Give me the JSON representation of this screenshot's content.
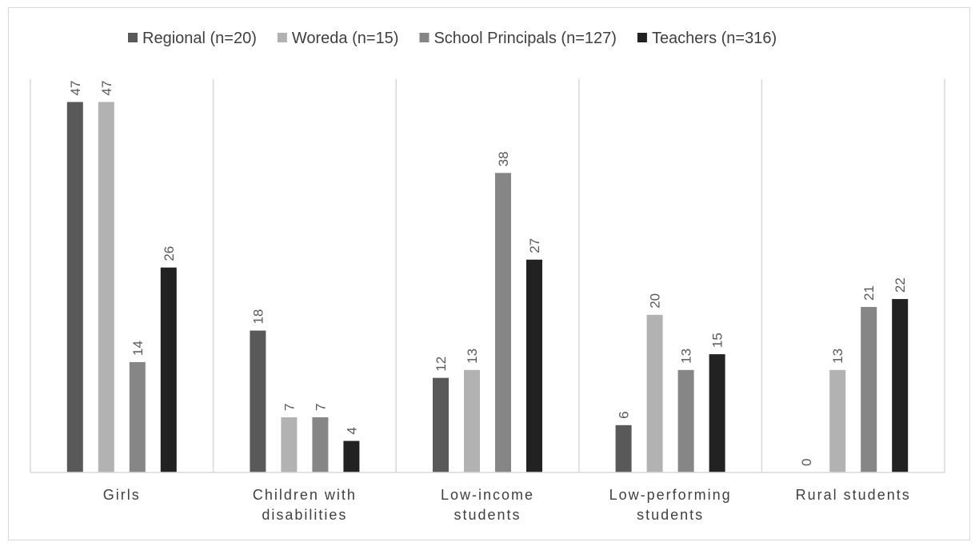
{
  "chart_data": {
    "type": "bar",
    "categories": [
      [
        "Girls"
      ],
      [
        "Children with",
        "disabilities"
      ],
      [
        "Low-income",
        "students"
      ],
      [
        "Low-performing",
        "students"
      ],
      [
        "Rural students"
      ]
    ],
    "series": [
      {
        "name": "Regional (n=20)",
        "color": "#595959",
        "values": [
          47,
          18,
          12,
          6,
          0
        ]
      },
      {
        "name": "Woreda (n=15)",
        "color": "#b2b2b2",
        "values": [
          47,
          7,
          13,
          20,
          13
        ]
      },
      {
        "name": "School Principals (n=127)",
        "color": "#868686",
        "values": [
          14,
          7,
          38,
          13,
          21
        ]
      },
      {
        "name": "Teachers (n=316)",
        "color": "#222222",
        "values": [
          26,
          4,
          27,
          15,
          22
        ]
      }
    ],
    "ylim": [
      0,
      50
    ],
    "legend_position": "top",
    "grid": false,
    "category_separators": true
  }
}
